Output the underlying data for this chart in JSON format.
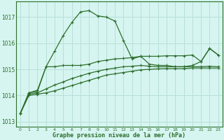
{
  "title": "Graphe pression niveau de la mer (hPa)",
  "background_color": "#d6f5f0",
  "grid_color": "#b8e0d8",
  "line_color": "#2d6e2d",
  "xlim": [
    -0.5,
    23.5
  ],
  "ylim": [
    1012.8,
    1017.6
  ],
  "yticks": [
    1013,
    1014,
    1015,
    1016,
    1017
  ],
  "xticks": [
    0,
    1,
    2,
    3,
    4,
    5,
    6,
    7,
    8,
    9,
    10,
    11,
    12,
    13,
    14,
    15,
    16,
    17,
    18,
    19,
    20,
    21,
    22,
    23
  ],
  "series1": [
    1013.3,
    1014.1,
    1014.2,
    1015.1,
    1015.7,
    1016.3,
    1016.8,
    1017.2,
    1017.25,
    1017.05,
    1017.0,
    1016.85,
    1016.1,
    1015.4,
    1015.5,
    1015.2,
    1015.15,
    1015.15,
    1015.1,
    1015.1,
    1015.15,
    1015.3,
    1015.8,
    1015.55
  ],
  "series2": [
    1013.3,
    1014.1,
    1014.15,
    1015.1,
    1015.1,
    1015.15,
    1015.15,
    1015.15,
    1015.2,
    1015.3,
    1015.35,
    1015.4,
    1015.42,
    1015.45,
    1015.5,
    1015.5,
    1015.5,
    1015.52,
    1015.52,
    1015.52,
    1015.55,
    1015.3,
    1015.8,
    1015.55
  ],
  "series3": [
    1013.3,
    1014.05,
    1014.1,
    1014.25,
    1014.4,
    1014.52,
    1014.65,
    1014.75,
    1014.85,
    1014.93,
    1015.0,
    1015.05,
    1015.1,
    1015.12,
    1015.15,
    1015.12,
    1015.1,
    1015.1,
    1015.1,
    1015.1,
    1015.1,
    1015.1,
    1015.12,
    1015.1
  ],
  "series4": [
    1013.3,
    1014.0,
    1014.05,
    1014.1,
    1014.18,
    1014.28,
    1014.38,
    1014.48,
    1014.58,
    1014.68,
    1014.78,
    1014.83,
    1014.88,
    1014.93,
    1014.98,
    1015.0,
    1015.02,
    1015.03,
    1015.03,
    1015.03,
    1015.05,
    1015.05,
    1015.05,
    1015.05
  ]
}
